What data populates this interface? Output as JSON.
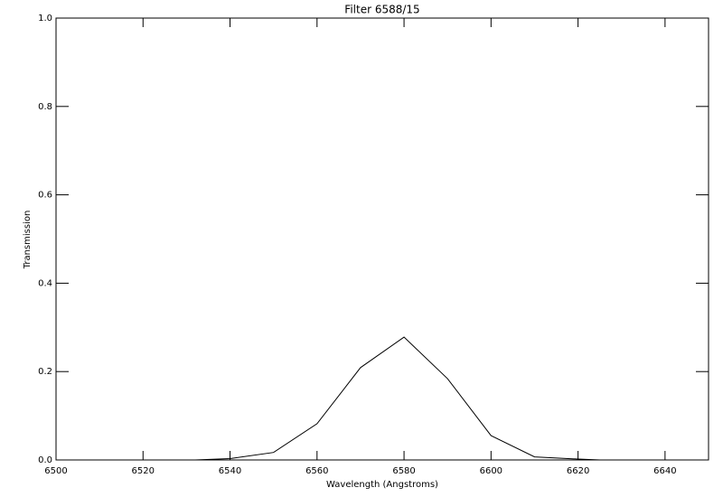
{
  "chart_data": {
    "type": "line",
    "title": "Filter 6588/15",
    "x_label": "Wavelength (Angstroms)",
    "y_label": "Transmission",
    "x": [
      6532,
      6540,
      6550,
      6560,
      6570,
      6580,
      6590,
      6600,
      6610,
      6620,
      6625
    ],
    "values": [
      0,
      0.003,
      0.017,
      0.082,
      0.209,
      0.278,
      0.184,
      0.055,
      0.007,
      0.002,
      0
    ],
    "color": "#000000",
    "xlim": [
      6500,
      6650
    ],
    "xticks": [
      6500,
      6520,
      6540,
      6560,
      6580,
      6600,
      6620,
      6640
    ],
    "ylim": [
      0,
      1
    ],
    "yticks": [
      {
        "value": 0,
        "label": "0.0"
      },
      0.2,
      0.4,
      0.6,
      0.8,
      {
        "value": 1,
        "label": "1.0"
      }
    ],
    "grid": false
  }
}
